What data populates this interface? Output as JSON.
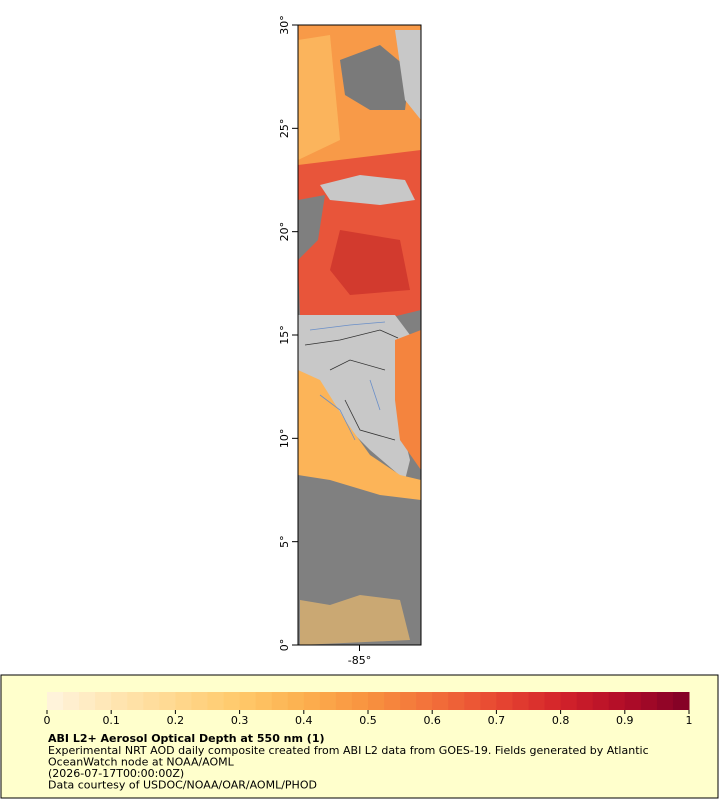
{
  "map": {
    "ylim": [
      0,
      30
    ],
    "yticks": [
      {
        "value": 0,
        "label": "0°"
      },
      {
        "value": 5,
        "label": "5°"
      },
      {
        "value": 10,
        "label": "10°"
      },
      {
        "value": 15,
        "label": "15°"
      },
      {
        "value": 20,
        "label": "20°"
      },
      {
        "value": 25,
        "label": "25°"
      },
      {
        "value": 30,
        "label": "30°"
      }
    ],
    "xlim": [
      -88,
      -82
    ],
    "xticks": [
      {
        "value": -85,
        "label": "-85°"
      }
    ],
    "colorbar": {
      "lim": [
        0,
        1
      ],
      "ticks": [
        0,
        0.1,
        0.2,
        0.3,
        0.4,
        0.5,
        0.6,
        0.7,
        0.8,
        0.9,
        1
      ],
      "colors": [
        "#fff5e0",
        "#ffe6b3",
        "#ffd88f",
        "#ffc96a",
        "#fcb04f",
        "#f8923f",
        "#f2703a",
        "#e84832",
        "#d3232a",
        "#b10c28",
        "#800026"
      ]
    },
    "legend": {
      "title": "ABI L2+ Aerosol Optical Depth at 550 nm (1)",
      "lines": [
        "Experimental NRT AOD daily composite created from ABI L2 data from GOES-19. Fields generated by Atlantic",
        "OceanWatch node at NOAA/AOML",
        "(2026-07-17T00:00:00Z)",
        "Data courtesy of USDOC/NOAA/OAR/AOML/PHOD"
      ]
    }
  }
}
